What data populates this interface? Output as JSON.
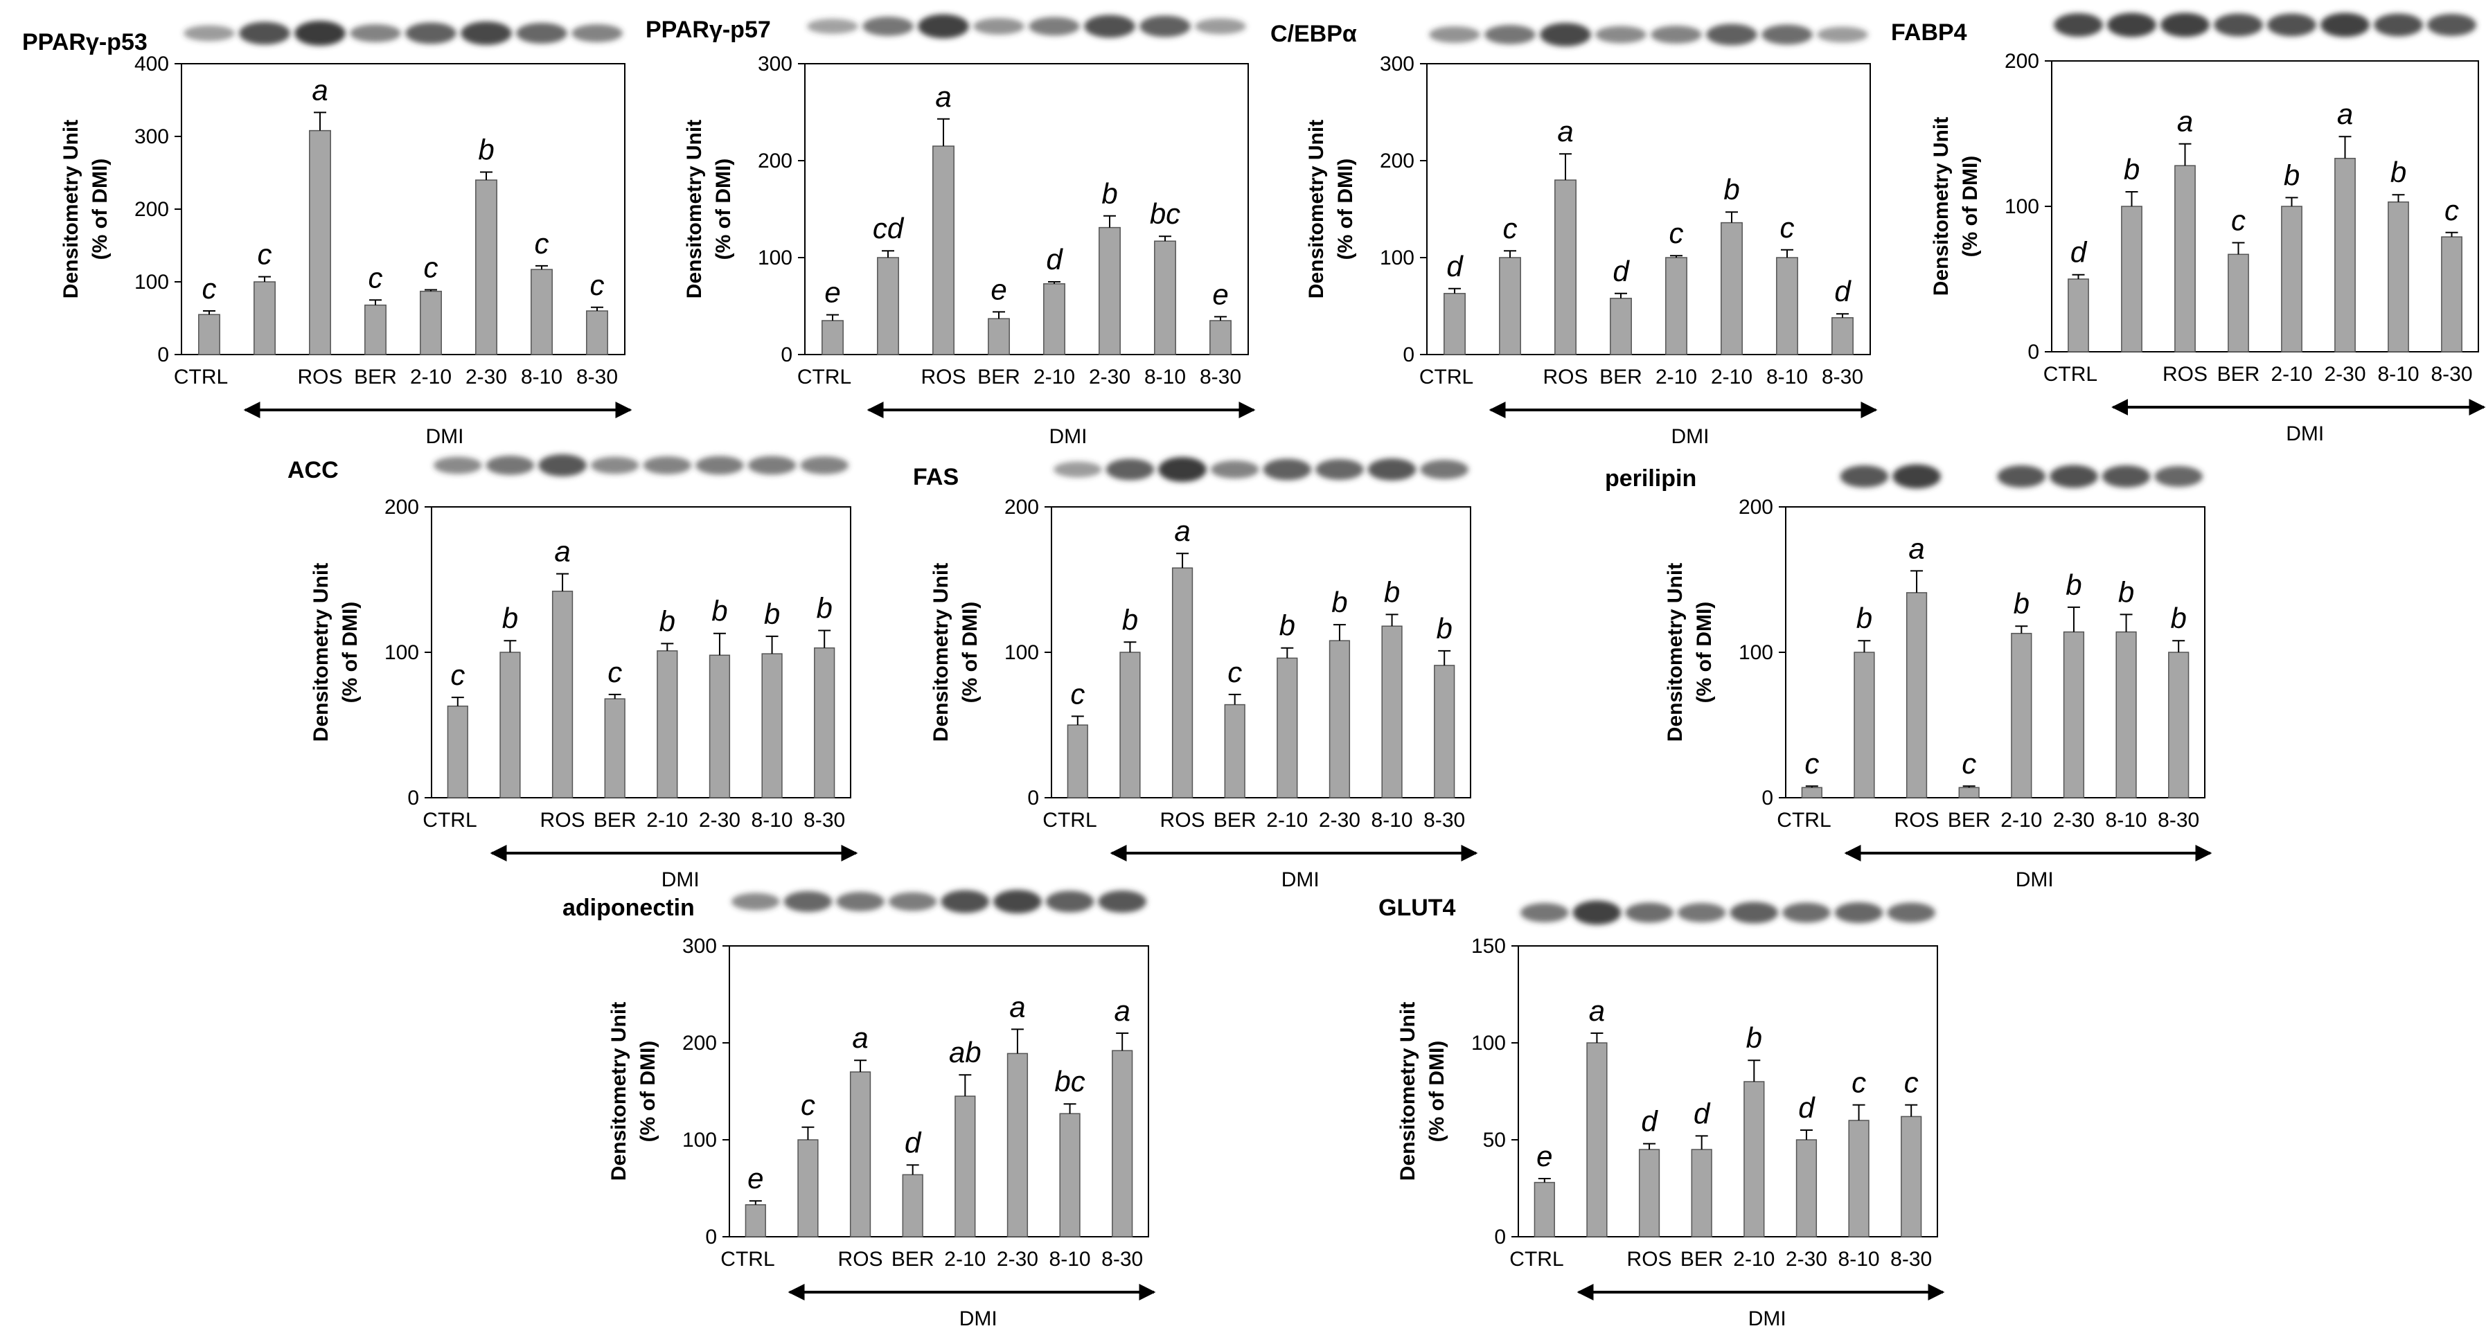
{
  "figure": {
    "ylabel_line1": "Densitometry Unit",
    "ylabel_line2": "(% of DMI)",
    "bracket_label": "DMI",
    "colors": {
      "bar": "#a6a6a6",
      "bar_stroke": "#555555",
      "axis": "#000000",
      "band": "#3a3a3a"
    }
  },
  "chart_data": [
    {
      "type": "bar",
      "title": "PPARγ-p53",
      "categories": [
        "CTRL",
        "",
        "ROS",
        "BER",
        "2-10",
        "2-30",
        "8-10",
        "8-30"
      ],
      "values": [
        55,
        100,
        308,
        68,
        87,
        240,
        117,
        60
      ],
      "errors": [
        5,
        7,
        25,
        7,
        2,
        11,
        5,
        5
      ],
      "letters": [
        "c",
        "c",
        "a",
        "c",
        "c",
        "b",
        "c",
        "c"
      ],
      "ylim": [
        0,
        400
      ],
      "yticks": [
        "0",
        "100",
        "200",
        "300",
        "400"
      ],
      "ylabel": "Densitometry Unit (% of DMI)",
      "bracket": "DMI",
      "band_intensity": [
        0.35,
        0.85,
        1.0,
        0.5,
        0.75,
        0.9,
        0.7,
        0.5
      ]
    },
    {
      "type": "bar",
      "title": "PPARγ-p57",
      "categories": [
        "CTRL",
        "",
        "ROS",
        "BER",
        "2-10",
        "2-30",
        "8-10",
        "8-30"
      ],
      "values": [
        35,
        100,
        215,
        37,
        73,
        131,
        117,
        35
      ],
      "errors": [
        6,
        7,
        28,
        7,
        2,
        12,
        5,
        4
      ],
      "letters": [
        "e",
        "cd",
        "a",
        "e",
        "d",
        "b",
        "bc",
        "e"
      ],
      "ylim": [
        0,
        300
      ],
      "yticks": [
        "0",
        "100",
        "200",
        "300"
      ],
      "ylabel": "Densitometry Unit (% of DMI)",
      "bracket": "DMI",
      "band_intensity": [
        0.3,
        0.6,
        0.95,
        0.4,
        0.55,
        0.85,
        0.75,
        0.35
      ]
    },
    {
      "type": "bar",
      "title": "C/EBPα",
      "categories": [
        "CTRL",
        "",
        "ROS",
        "BER",
        "2-10",
        "2-10",
        "8-10",
        "8-30"
      ],
      "values": [
        63,
        100,
        180,
        58,
        100,
        136,
        100,
        38
      ],
      "errors": [
        5,
        7,
        27,
        5,
        2,
        11,
        8,
        4
      ],
      "letters": [
        "d",
        "c",
        "a",
        "d",
        "c",
        "b",
        "c",
        "d"
      ],
      "ylim": [
        0,
        300
      ],
      "yticks": [
        "0",
        "100",
        "200",
        "300"
      ],
      "ylabel": "Densitometry Unit (% of DMI)",
      "bracket": "DMI",
      "band_intensity": [
        0.4,
        0.6,
        0.9,
        0.45,
        0.5,
        0.75,
        0.65,
        0.35
      ]
    },
    {
      "type": "bar",
      "title": "FABP4",
      "categories": [
        "CTRL",
        "",
        "ROS",
        "BER",
        "2-10",
        "2-30",
        "8-10",
        "8-30"
      ],
      "values": [
        50,
        100,
        128,
        67,
        100,
        133,
        103,
        79
      ],
      "errors": [
        3,
        10,
        15,
        8,
        6,
        15,
        5,
        3
      ],
      "letters": [
        "d",
        "b",
        "a",
        "c",
        "b",
        "a",
        "b",
        "c"
      ],
      "ylim": [
        0,
        200
      ],
      "yticks": [
        "0",
        "100",
        "200"
      ],
      "ylabel": "Densitometry Unit (% of DMI)",
      "bracket": "DMI",
      "band_intensity": [
        0.9,
        0.95,
        0.95,
        0.85,
        0.85,
        0.95,
        0.85,
        0.8
      ]
    },
    {
      "type": "bar",
      "title": "ACC",
      "categories": [
        "CTRL",
        "",
        "ROS",
        "BER",
        "2-10",
        "2-30",
        "8-10",
        "8-30"
      ],
      "values": [
        63,
        100,
        142,
        68,
        101,
        98,
        99,
        103
      ],
      "errors": [
        6,
        8,
        12,
        3,
        5,
        15,
        12,
        12
      ],
      "letters": [
        "c",
        "b",
        "a",
        "c",
        "b",
        "b",
        "b",
        "b"
      ],
      "ylim": [
        0,
        200
      ],
      "yticks": [
        "0",
        "100",
        "200"
      ],
      "ylabel": "Densitometry Unit (% of DMI)",
      "bracket": "DMI",
      "band_intensity": [
        0.45,
        0.6,
        0.8,
        0.45,
        0.5,
        0.55,
        0.55,
        0.5
      ]
    },
    {
      "type": "bar",
      "title": "FAS",
      "categories": [
        "CTRL",
        "",
        "ROS",
        "BER",
        "2-10",
        "2-30",
        "8-10",
        "8-30"
      ],
      "values": [
        50,
        100,
        158,
        64,
        96,
        108,
        118,
        91
      ],
      "errors": [
        6,
        7,
        10,
        7,
        7,
        11,
        8,
        10
      ],
      "letters": [
        "c",
        "b",
        "a",
        "c",
        "b",
        "b",
        "b",
        "b"
      ],
      "ylim": [
        0,
        200
      ],
      "yticks": [
        "0",
        "100",
        "200"
      ],
      "ylabel": "Densitometry Unit (% of DMI)",
      "bracket": "DMI",
      "band_intensity": [
        0.35,
        0.75,
        1.0,
        0.5,
        0.75,
        0.7,
        0.8,
        0.6
      ]
    },
    {
      "type": "bar",
      "title": "perilipin",
      "categories": [
        "CTRL",
        "",
        "ROS",
        "BER",
        "2-10",
        "2-30",
        "8-10",
        "8-30"
      ],
      "values": [
        7,
        100,
        141,
        7,
        113,
        114,
        114,
        100
      ],
      "errors": [
        1,
        8,
        15,
        1,
        5,
        17,
        12,
        8
      ],
      "letters": [
        "c",
        "b",
        "a",
        "c",
        "b",
        "b",
        "b",
        "b"
      ],
      "ylim": [
        0,
        200
      ],
      "yticks": [
        "0",
        "100",
        "200"
      ],
      "ylabel": "Densitometry Unit (% of DMI)",
      "bracket": "DMI",
      "band_intensity": [
        0.0,
        0.8,
        0.95,
        0.0,
        0.8,
        0.85,
        0.8,
        0.7
      ]
    },
    {
      "type": "bar",
      "title": "adiponectin",
      "categories": [
        "CTRL",
        "",
        "ROS",
        "BER",
        "2-10",
        "2-30",
        "8-10",
        "8-30"
      ],
      "values": [
        33,
        100,
        170,
        64,
        145,
        189,
        127,
        192
      ],
      "errors": [
        4,
        13,
        12,
        10,
        22,
        25,
        10,
        18
      ],
      "letters": [
        "e",
        "c",
        "a",
        "d",
        "ab",
        "a",
        "bc",
        "a"
      ],
      "ylim": [
        0,
        300
      ],
      "yticks": [
        "0",
        "100",
        "200",
        "300"
      ],
      "ylabel": "Densitometry Unit (% of DMI)",
      "bracket": "DMI",
      "band_intensity": [
        0.45,
        0.7,
        0.6,
        0.55,
        0.85,
        0.9,
        0.75,
        0.8
      ]
    },
    {
      "type": "bar",
      "title": "GLUT4",
      "categories": [
        "CTRL",
        "",
        "ROS",
        "BER",
        "2-10",
        "2-30",
        "8-10",
        "8-30"
      ],
      "values": [
        28,
        100,
        45,
        45,
        80,
        50,
        60,
        62
      ],
      "errors": [
        2,
        5,
        3,
        7,
        11,
        5,
        8,
        6
      ],
      "letters": [
        "e",
        "a",
        "d",
        "d",
        "b",
        "d",
        "c",
        "c"
      ],
      "ylim": [
        0,
        150
      ],
      "yticks": [
        "0",
        "50",
        "100",
        "150"
      ],
      "ylabel": "Densitometry Unit (% of DMI)",
      "bracket": "DMI",
      "band_intensity": [
        0.6,
        0.95,
        0.65,
        0.6,
        0.75,
        0.65,
        0.7,
        0.65
      ]
    }
  ]
}
